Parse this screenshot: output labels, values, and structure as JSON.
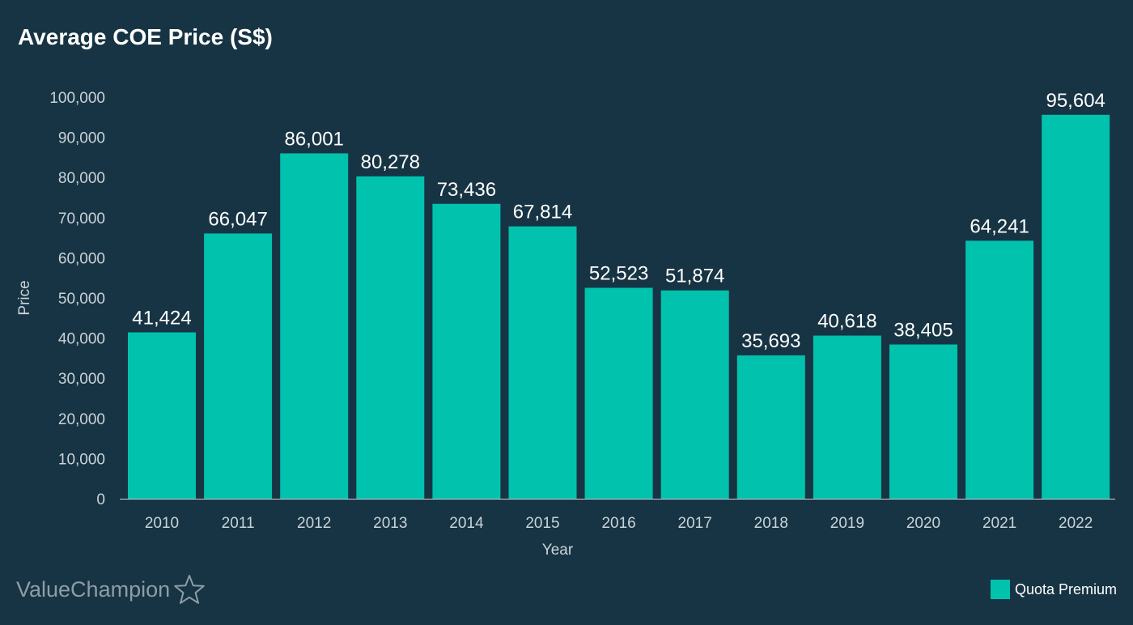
{
  "brand": {
    "name": "ValueChampion"
  },
  "colors": {
    "background": "#173444",
    "bar": "#00c2ad",
    "text": "#ffffff",
    "axis_text": "#c9d3d8",
    "logo_text": "#8e9da6"
  },
  "chart_data": {
    "type": "bar",
    "title": "Average COE Price (S$)",
    "xlabel": "Year",
    "ylabel": "Price",
    "ylim": [
      0,
      100000
    ],
    "yticks": [
      0,
      10000,
      20000,
      30000,
      40000,
      50000,
      60000,
      70000,
      80000,
      90000,
      100000
    ],
    "ytick_labels": [
      "0",
      "10,000",
      "20,000",
      "30,000",
      "40,000",
      "50,000",
      "60,000",
      "70,000",
      "80,000",
      "90,000",
      "100,000"
    ],
    "grid": false,
    "legend_position": "bottom-right",
    "categories": [
      "2010",
      "2011",
      "2012",
      "2013",
      "2014",
      "2015",
      "2016",
      "2017",
      "2018",
      "2019",
      "2020",
      "2021",
      "2022"
    ],
    "series": [
      {
        "name": "Quota Premium",
        "values": [
          41424,
          66047,
          86001,
          80278,
          73436,
          67814,
          52523,
          51874,
          35693,
          40618,
          38405,
          64241,
          95604
        ],
        "labels": [
          "41,424",
          "66,047",
          "86,001",
          "80,278",
          "73,436",
          "67,814",
          "52,523",
          "51,874",
          "35,693",
          "40,618",
          "38,405",
          "64,241",
          "95,604"
        ]
      }
    ]
  }
}
